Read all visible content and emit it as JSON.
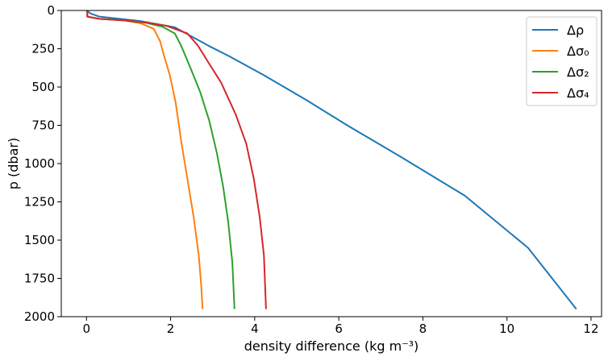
{
  "chart_data": {
    "type": "line",
    "xlabel": "density difference (kg m⁻³)",
    "ylabel": "p (dbar)",
    "xlim": [
      -0.6,
      12.25
    ],
    "ylim": [
      2000,
      0
    ],
    "y_inverted": true,
    "xticks": [
      0,
      2,
      4,
      6,
      8,
      10,
      12
    ],
    "yticks": [
      0,
      250,
      500,
      750,
      1000,
      1250,
      1500,
      1750,
      2000
    ],
    "grid": false,
    "legend_position": "top-right",
    "series": [
      {
        "name": "Δρ",
        "color": "#1f77b4",
        "points": [
          [
            0,
            0
          ],
          [
            0.1,
            20
          ],
          [
            0.3,
            40
          ],
          [
            0.8,
            55
          ],
          [
            1.3,
            70
          ],
          [
            1.7,
            90
          ],
          [
            2.1,
            110
          ],
          [
            2.5,
            170
          ],
          [
            2.9,
            230
          ],
          [
            3.4,
            300
          ],
          [
            4.2,
            420
          ],
          [
            5.2,
            580
          ],
          [
            6.2,
            750
          ],
          [
            7.5,
            960
          ],
          [
            9.0,
            1210
          ],
          [
            10.5,
            1550
          ],
          [
            11.65,
            1950
          ]
        ]
      },
      {
        "name": "Δσ₀",
        "color": "#ff7f0e",
        "points": [
          [
            0.02,
            0
          ],
          [
            0.02,
            40
          ],
          [
            0.3,
            55
          ],
          [
            0.9,
            65
          ],
          [
            1.3,
            85
          ],
          [
            1.6,
            120
          ],
          [
            1.75,
            200
          ],
          [
            1.85,
            300
          ],
          [
            1.98,
            420
          ],
          [
            2.12,
            600
          ],
          [
            2.25,
            850
          ],
          [
            2.4,
            1100
          ],
          [
            2.55,
            1350
          ],
          [
            2.67,
            1600
          ],
          [
            2.73,
            1800
          ],
          [
            2.76,
            1950
          ]
        ]
      },
      {
        "name": "Δσ₂",
        "color": "#2ca02c",
        "points": [
          [
            0.02,
            0
          ],
          [
            0.02,
            40
          ],
          [
            0.3,
            55
          ],
          [
            0.9,
            65
          ],
          [
            1.4,
            80
          ],
          [
            1.8,
            105
          ],
          [
            2.1,
            150
          ],
          [
            2.25,
            230
          ],
          [
            2.45,
            360
          ],
          [
            2.7,
            530
          ],
          [
            2.92,
            720
          ],
          [
            3.1,
            930
          ],
          [
            3.25,
            1150
          ],
          [
            3.37,
            1380
          ],
          [
            3.47,
            1650
          ],
          [
            3.52,
            1950
          ]
        ]
      },
      {
        "name": "Δσ₄",
        "color": "#d62728",
        "points": [
          [
            0.02,
            0
          ],
          [
            0.02,
            40
          ],
          [
            0.3,
            55
          ],
          [
            0.9,
            65
          ],
          [
            1.4,
            78
          ],
          [
            1.9,
            100
          ],
          [
            2.4,
            150
          ],
          [
            2.65,
            230
          ],
          [
            2.9,
            340
          ],
          [
            3.2,
            470
          ],
          [
            3.55,
            680
          ],
          [
            3.8,
            870
          ],
          [
            3.98,
            1100
          ],
          [
            4.12,
            1350
          ],
          [
            4.22,
            1600
          ],
          [
            4.27,
            1950
          ]
        ]
      }
    ]
  }
}
